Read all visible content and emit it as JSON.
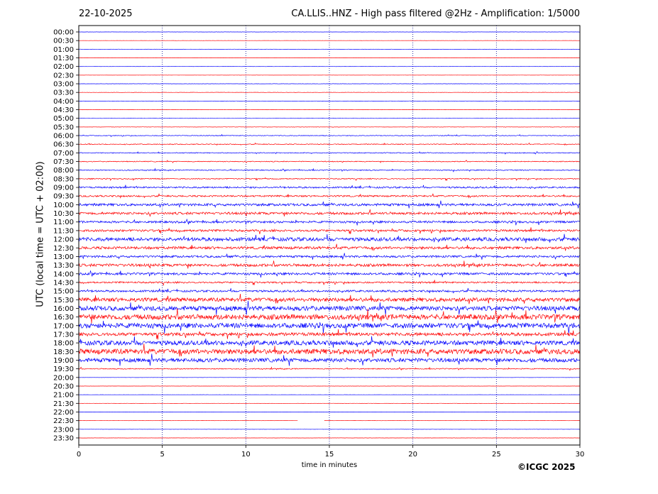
{
  "header": {
    "date": "22-10-2025",
    "title": "CA.LLIS..HNZ - High pass filtered @2Hz - Amplification: 1/5000"
  },
  "footer": {
    "credit": "©ICGC 2025"
  },
  "chart_data": {
    "type": "line",
    "ylabel": "UTC (local time = UTC + 02:00)",
    "xlabel": "time in minutes",
    "xlim": [
      0,
      30
    ],
    "x_ticks": [
      "0",
      "5",
      "10",
      "15",
      "20",
      "25",
      "30"
    ],
    "grid_x": [
      5,
      10,
      15,
      20,
      25
    ],
    "grid_y": false,
    "traces": [
      "00:00",
      "00:30",
      "01:00",
      "01:30",
      "02:00",
      "02:30",
      "03:00",
      "03:30",
      "04:00",
      "04:30",
      "05:00",
      "05:30",
      "06:00",
      "06:30",
      "07:00",
      "07:30",
      "08:00",
      "08:30",
      "09:00",
      "09:30",
      "10:00",
      "10:30",
      "11:00",
      "11:30",
      "12:00",
      "12:30",
      "13:00",
      "13:30",
      "14:00",
      "14:30",
      "15:00",
      "15:30",
      "16:00",
      "16:30",
      "17:00",
      "17:30",
      "18:00",
      "18:30",
      "19:00",
      "19:30",
      "20:00",
      "20:30",
      "21:00",
      "21:30",
      "22:00",
      "22:30",
      "23:00",
      "23:30"
    ],
    "colors": {
      "odd_trace": "#ff0000",
      "even_trace": "#0000ff",
      "axis": "#000000",
      "grid": "#00008b"
    },
    "noise_level": [
      0.1,
      0.1,
      0.1,
      0.1,
      0.1,
      0.1,
      0.15,
      0.2,
      0.15,
      0.2,
      0.15,
      0.2,
      0.4,
      0.5,
      0.5,
      0.5,
      0.6,
      0.6,
      1.0,
      1.0,
      1.5,
      1.5,
      1.3,
      1.3,
      2.2,
      1.6,
      1.3,
      1.7,
      1.4,
      1.0,
      1.2,
      2.4,
      2.8,
      3.2,
      3.0,
      2.0,
      2.8,
      3.2,
      2.4,
      0.6,
      0.1,
      0.1,
      0.1,
      0.1,
      0.1,
      0.1,
      0.1,
      0.1
    ],
    "data_gap_minutes": {
      "trace": "22:30",
      "from": 13.1,
      "to": 14.7
    }
  }
}
